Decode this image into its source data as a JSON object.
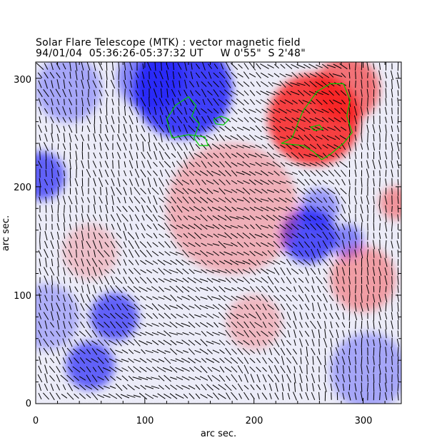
{
  "chart_data": {
    "type": "heatmap",
    "title": "Solar Flare Telescope (MTK) : vector magnetic field",
    "subtitle": "94/01/04  05:36:26-05:37:32 UT     W 0'55\"  S 2'48\"",
    "xlabel": "arc sec.",
    "ylabel": "arc sec.",
    "xlim": [
      0,
      335
    ],
    "ylim": [
      0,
      315
    ],
    "xticks": [
      "0",
      "100",
      "200",
      "300"
    ],
    "xtick_values": [
      0,
      100,
      200,
      300
    ],
    "yticks": [
      "0",
      "100",
      "200",
      "300"
    ],
    "ytick_values": [
      0,
      100,
      200,
      300
    ],
    "colors": {
      "positive": "#ff0000",
      "negative": "#0000ff",
      "zero": "#ffffff",
      "contour": "#00cc00",
      "vector": "#000000"
    },
    "polarity_regions": [
      {
        "polarity": "negative",
        "x": 135,
        "y": 290,
        "r": 45,
        "strength": 1.0
      },
      {
        "polarity": "negative",
        "x": 105,
        "y": 300,
        "r": 30,
        "strength": 0.6
      },
      {
        "polarity": "positive",
        "x": 255,
        "y": 262,
        "r": 42,
        "strength": 1.0
      },
      {
        "polarity": "positive",
        "x": 285,
        "y": 290,
        "r": 30,
        "strength": 0.7
      },
      {
        "polarity": "negative",
        "x": 250,
        "y": 155,
        "r": 25,
        "strength": 0.9
      },
      {
        "polarity": "negative",
        "x": 285,
        "y": 150,
        "r": 15,
        "strength": 0.6
      },
      {
        "polarity": "negative",
        "x": 260,
        "y": 180,
        "r": 18,
        "strength": 0.5
      },
      {
        "polarity": "negative",
        "x": 72,
        "y": 80,
        "r": 22,
        "strength": 0.8
      },
      {
        "polarity": "negative",
        "x": 50,
        "y": 35,
        "r": 22,
        "strength": 0.8
      },
      {
        "polarity": "negative",
        "x": 5,
        "y": 210,
        "r": 22,
        "strength": 0.8
      },
      {
        "polarity": "negative",
        "x": 30,
        "y": 290,
        "r": 30,
        "strength": 0.4
      },
      {
        "polarity": "negative",
        "x": 305,
        "y": 30,
        "r": 35,
        "strength": 0.4
      },
      {
        "polarity": "negative",
        "x": 10,
        "y": 80,
        "r": 30,
        "strength": 0.35
      },
      {
        "polarity": "positive",
        "x": 180,
        "y": 180,
        "r": 60,
        "strength": 0.35
      },
      {
        "polarity": "positive",
        "x": 300,
        "y": 115,
        "r": 30,
        "strength": 0.45
      },
      {
        "polarity": "positive",
        "x": 200,
        "y": 75,
        "r": 25,
        "strength": 0.3
      },
      {
        "polarity": "positive",
        "x": 50,
        "y": 140,
        "r": 25,
        "strength": 0.25
      },
      {
        "polarity": "positive",
        "x": 330,
        "y": 185,
        "r": 15,
        "strength": 0.5
      }
    ],
    "contours": [
      [
        [
          125,
          245
        ],
        [
          120,
          262
        ],
        [
          128,
          275
        ],
        [
          140,
          283
        ],
        [
          147,
          275
        ],
        [
          143,
          265
        ],
        [
          150,
          258
        ],
        [
          145,
          245
        ],
        [
          150,
          238
        ],
        [
          158,
          238
        ],
        [
          155,
          246
        ],
        [
          140,
          248
        ],
        [
          125,
          245
        ]
      ],
      [
        [
          163,
          262
        ],
        [
          170,
          265
        ],
        [
          177,
          262
        ],
        [
          172,
          257
        ],
        [
          165,
          258
        ],
        [
          163,
          262
        ]
      ],
      [
        [
          225,
          240
        ],
        [
          235,
          245
        ],
        [
          240,
          258
        ],
        [
          245,
          270
        ],
        [
          258,
          288
        ],
        [
          270,
          295
        ],
        [
          282,
          295
        ],
        [
          288,
          280
        ],
        [
          285,
          265
        ],
        [
          290,
          250
        ],
        [
          282,
          240
        ],
        [
          270,
          230
        ],
        [
          262,
          225
        ],
        [
          255,
          232
        ],
        [
          245,
          238
        ],
        [
          225,
          240
        ]
      ],
      [
        [
          252,
          255
        ],
        [
          260,
          257
        ],
        [
          263,
          253
        ],
        [
          255,
          252
        ],
        [
          252,
          255
        ]
      ]
    ]
  }
}
